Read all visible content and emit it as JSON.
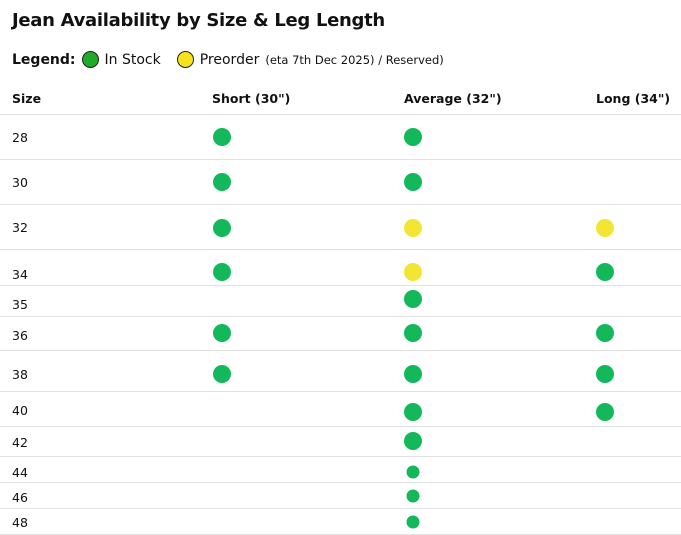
{
  "title": "Jean Availability by Size & Leg Length",
  "legend": {
    "label": "Legend:",
    "in_stock": "In Stock",
    "preorder": "Preorder",
    "preorder_note": "(eta 7th Dec 2025) / Reserved)",
    "in_stock_color": "#1faa2a",
    "preorder_color": "#f5e21c"
  },
  "status_colors": {
    "in_stock": "#13b85a",
    "preorder": "#f2e534"
  },
  "columns": [
    "Size",
    "Short (30\")",
    "Average (32\")",
    "Long (34\")"
  ],
  "rows": [
    {
      "size": "28",
      "short": "in_stock",
      "average": "in_stock",
      "long": ""
    },
    {
      "size": "30",
      "short": "in_stock",
      "average": "in_stock",
      "long": ""
    },
    {
      "size": "32",
      "short": "in_stock",
      "average": "preorder",
      "long": "preorder"
    },
    {
      "size": "34",
      "short": "in_stock",
      "average": "preorder",
      "long": "in_stock"
    },
    {
      "size": "35",
      "short": "",
      "average": "in_stock",
      "long": ""
    },
    {
      "size": "36",
      "short": "in_stock",
      "average": "in_stock",
      "long": "in_stock"
    },
    {
      "size": "38",
      "short": "in_stock",
      "average": "in_stock",
      "long": "in_stock"
    },
    {
      "size": "40",
      "short": "",
      "average": "in_stock",
      "long": "in_stock"
    },
    {
      "size": "42",
      "short": "",
      "average": "in_stock",
      "long": ""
    },
    {
      "size": "44",
      "short": "",
      "average": "in_stock",
      "long": ""
    },
    {
      "size": "46",
      "short": "",
      "average": "in_stock",
      "long": ""
    },
    {
      "size": "48",
      "short": "",
      "average": "in_stock",
      "long": ""
    }
  ]
}
